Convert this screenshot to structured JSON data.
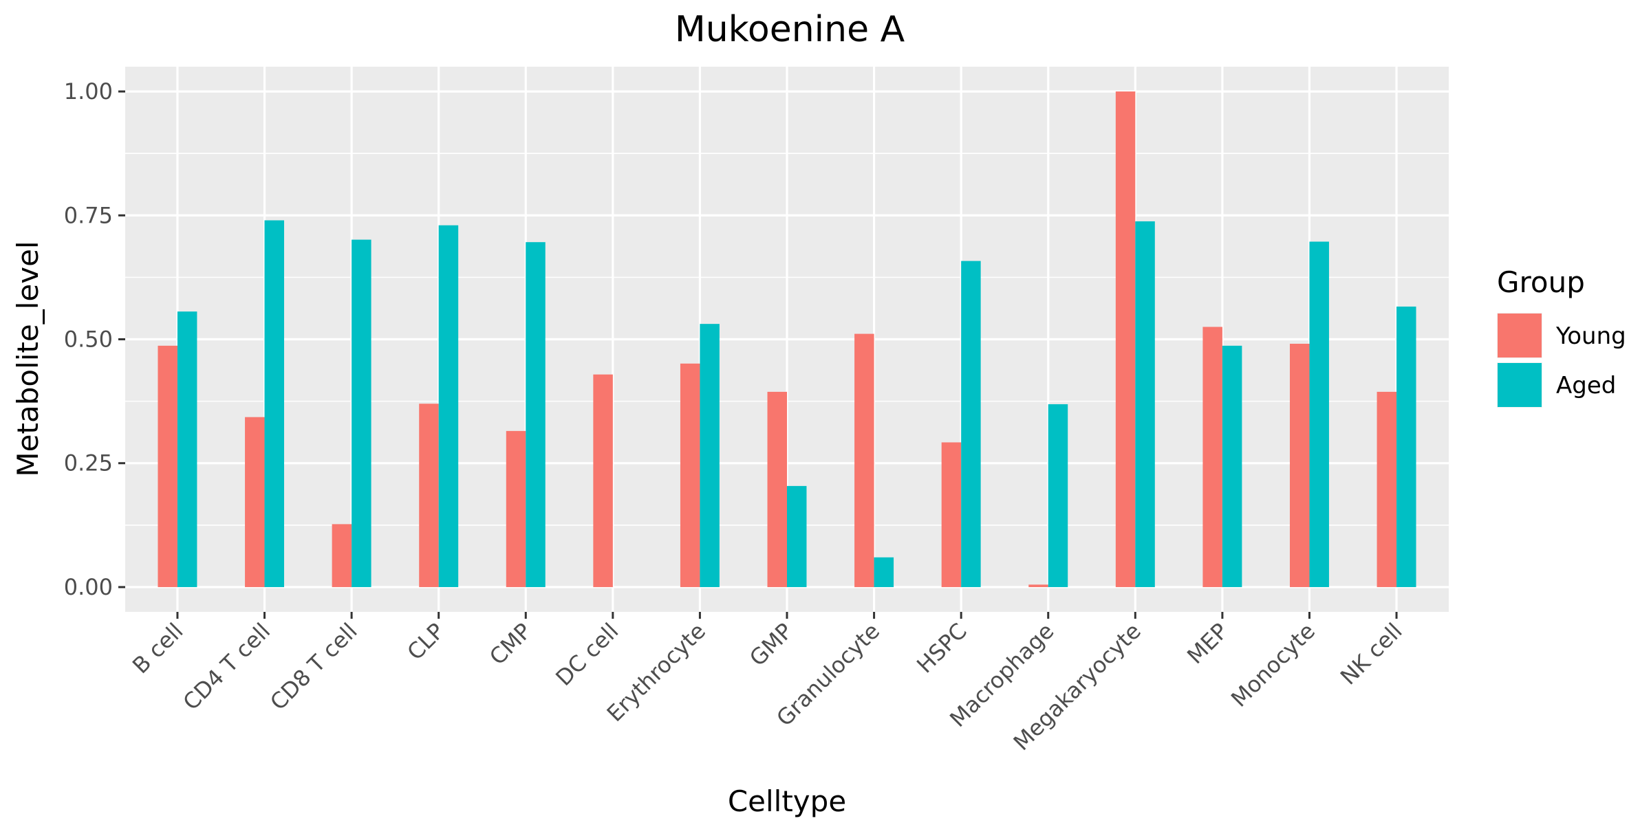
{
  "chart_data": {
    "type": "bar",
    "title": "Mukoenine A",
    "xlabel": "Celltype",
    "ylabel": "Metabolite_level",
    "ylim": [
      -0.05,
      1.05
    ],
    "yticks": [
      0.0,
      0.25,
      0.5,
      0.75,
      1.0
    ],
    "ytick_labels": [
      "0.00",
      "0.25",
      "0.50",
      "0.75",
      "1.00"
    ],
    "categories": [
      "B cell",
      "CD4 T cell",
      "CD8 T cell",
      "CLP",
      "CMP",
      "DC cell",
      "Erythrocyte",
      "GMP",
      "Granulocyte",
      "HSPC",
      "Macrophage",
      "Megakaryocyte",
      "MEP",
      "Monocyte",
      "NK cell"
    ],
    "series": [
      {
        "name": "Young",
        "color": "#F8766D",
        "values": [
          0.487,
          0.343,
          0.127,
          0.37,
          0.315,
          0.429,
          0.451,
          0.394,
          0.511,
          0.292,
          0.005,
          1.0,
          0.525,
          0.491,
          0.394
        ]
      },
      {
        "name": "Aged",
        "color": "#00BFC4",
        "values": [
          0.556,
          0.74,
          0.701,
          0.73,
          0.696,
          null,
          0.531,
          0.204,
          0.06,
          0.658,
          0.369,
          0.738,
          0.487,
          0.697,
          0.566
        ]
      }
    ],
    "legend": {
      "title": "Group",
      "placement": "right"
    },
    "grid": true,
    "panel_background": "#EBEBEB",
    "grid_color": "#FFFFFF"
  }
}
